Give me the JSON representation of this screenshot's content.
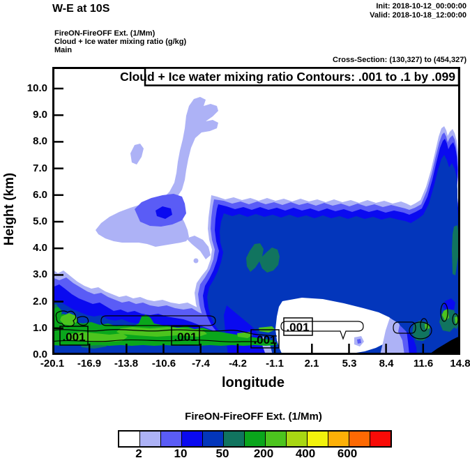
{
  "header": {
    "title": "W-E at 10S",
    "init": "Init: 2018-10-12_00:00:00",
    "valid": "Valid: 2018-10-18_12:00:00",
    "field_lines": [
      "FireON-FireOFF Ext.  (1/Mm)",
      "Cloud + Ice water mixing ratio  (g/kg)",
      "Main"
    ],
    "cross_section": "Cross-Section: (130,327) to (454,327)"
  },
  "plot": {
    "contour_header": "Cloud + Ice water mixing ratio Contours: .001 to .1 by .099",
    "ylabel": "Height (km)",
    "xlabel": "longitude",
    "yticks": [
      "10.0",
      "9.0",
      "8.0",
      "7.0",
      "6.0",
      "5.0",
      "4.0",
      "3.0",
      "2.0",
      "1.0",
      "0.0"
    ],
    "xticks": [
      "-20.1",
      "-16.9",
      "-13.8",
      "-10.6",
      "-7.4",
      "-4.2",
      "-1.1",
      "2.1",
      "5.3",
      "8.4",
      "11.6",
      "14.8"
    ],
    "contour_labels": [
      ".001",
      ".001",
      ".001",
      ".001"
    ]
  },
  "colorbar": {
    "title": "FireON-FireOFF Ext.  (1/Mm)",
    "labels": [
      "2",
      "10",
      "50",
      "200",
      "400",
      "600"
    ],
    "colors": [
      "#ffffff",
      "#adb2f6",
      "#5a5cf6",
      "#0a0af0",
      "#0336bb",
      "#11745f",
      "#0aa61c",
      "#4cc41e",
      "#a8d713",
      "#f2f20c",
      "#fdb007",
      "#fd6903",
      "#f90b07"
    ]
  },
  "chart_data": {
    "type": "filled_contour_cross_section",
    "title": "W-E at 10S",
    "init_time": "2018-10-12_00:00:00",
    "valid_time": "2018-10-18_12:00:00",
    "cross_section_points": "(130,327) to (454,327)",
    "fill_field": {
      "name": "FireON-FireOFF Ext.",
      "units": "1/Mm",
      "labeled_levels": [
        2,
        10,
        50,
        200,
        400,
        600
      ],
      "palette": [
        "#ffffff",
        "#adb2f6",
        "#5a5cf6",
        "#0a0af0",
        "#0336bb",
        "#11745f",
        "#0aa61c",
        "#4cc41e",
        "#a8d713",
        "#f2f20c",
        "#fdb007",
        "#fd6903",
        "#f90b07"
      ],
      "legend_position": "bottom"
    },
    "line_field": {
      "name": "Cloud + Ice water mixing ratio",
      "units": "g/kg",
      "contour_levels": [
        0.001,
        0.1
      ],
      "contour_spec": ".001 to .1 by .099",
      "visible_labels": [
        ".001",
        ".001",
        ".001",
        ".001"
      ]
    },
    "xaxis": {
      "label": "longitude",
      "ticks": [
        -20.1,
        -16.9,
        -13.8,
        -10.6,
        -7.4,
        -4.2,
        -1.1,
        2.1,
        5.3,
        8.4,
        11.6,
        14.8
      ]
    },
    "yaxis": {
      "label": "Height (km)",
      "ticks": [
        0.0,
        1.0,
        2.0,
        3.0,
        4.0,
        5.0,
        6.0,
        7.0,
        8.0,
        9.0,
        10.0
      ],
      "range_km": [
        0.0,
        10.8
      ]
    },
    "grid": false,
    "features": [
      "Diagonal light-lavender plume rising from (-13E, 2.5km) to (-4E, 9.5km) with periwinkle core near (-11E, 5km)",
      "Large enhanced-extinction cloud mass from -3E to 14.8E between ~1.5km and ~6km, navy interior (50-200 1/Mm)",
      "Narrow vertical spike near 13.5E reaching ~8.5km",
      "Teal patch (200-400 1/Mm) near (-3.5E, 3.5km) and at right edge ~13E",
      "Shallow surface layer below ~1.2km from -20.1E to -1.1E with green/bright-green (400-600 1/Mm) core",
      "White low-extinction gap near surface between ~-0.5E and 8E containing .001 g/kg cloud contour",
      "Green surface patches near 11E with black terrain notch at bottom-right corner"
    ]
  }
}
